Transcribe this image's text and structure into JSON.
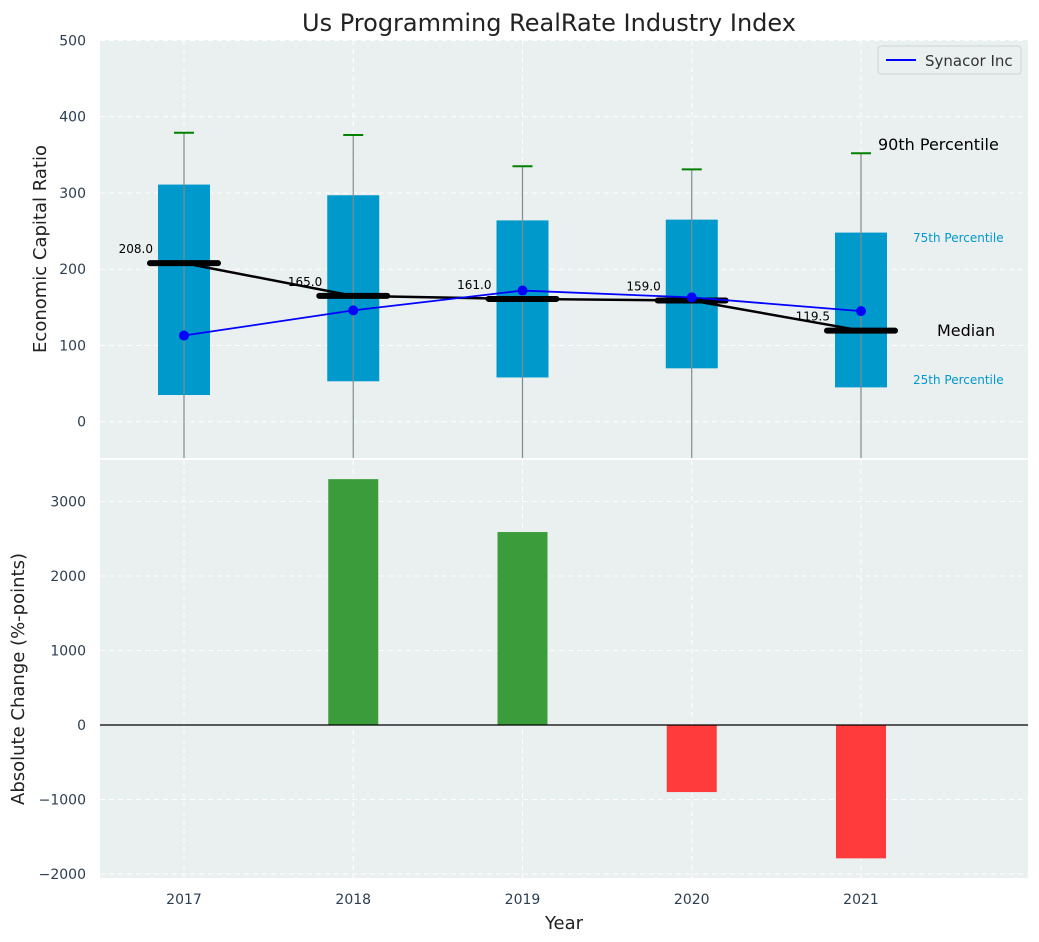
{
  "chart_data": [
    {
      "type": "box",
      "title": "Us Programming RealRate Industry Index",
      "xlabel": "",
      "ylabel": "Economic Capital Ratio",
      "ylim": [
        -50,
        500
      ],
      "yticks": [
        0,
        100,
        200,
        300,
        400,
        500
      ],
      "grid": true,
      "legend": {
        "position": "top-right",
        "entries": [
          "Synacor Inc"
        ]
      },
      "categories": [
        "2017",
        "2018",
        "2019",
        "2020",
        "2021"
      ],
      "p25": [
        35,
        53,
        58,
        70,
        45
      ],
      "p75": [
        311,
        297,
        264,
        265,
        248
      ],
      "p90": [
        379,
        376,
        335,
        331,
        352
      ],
      "median": [
        208.0,
        165.0,
        161.0,
        159.0,
        119.5
      ],
      "median_labels": [
        "208.0",
        "165.0",
        "161.0",
        "159.0",
        "119.5"
      ],
      "series": [
        {
          "name": "Synacor Inc",
          "values": [
            113,
            146,
            172,
            163,
            145
          ]
        }
      ],
      "annotations": {
        "p90": "90th Percentile",
        "p75": "75th Percentile",
        "median": "Median",
        "p25": "25th Percentile"
      }
    },
    {
      "type": "bar",
      "xlabel": "Year",
      "ylabel": "Absolute Change (%-points)",
      "ylim": [
        -2000,
        3600
      ],
      "yticks": [
        -2000,
        -1000,
        0,
        1000,
        2000,
        3000
      ],
      "grid": true,
      "categories": [
        "2017",
        "2018",
        "2019",
        "2020",
        "2021"
      ],
      "values": [
        0,
        3300,
        2590,
        -900,
        -1790
      ]
    }
  ],
  "colors": {
    "box": "#0099cc",
    "whisker_cap": "#008000",
    "series": "#0000ff",
    "median": "#000000",
    "positive": "#3a9c3a",
    "negative": "#ff3b3b",
    "panel_bg": "#eaeff0"
  }
}
